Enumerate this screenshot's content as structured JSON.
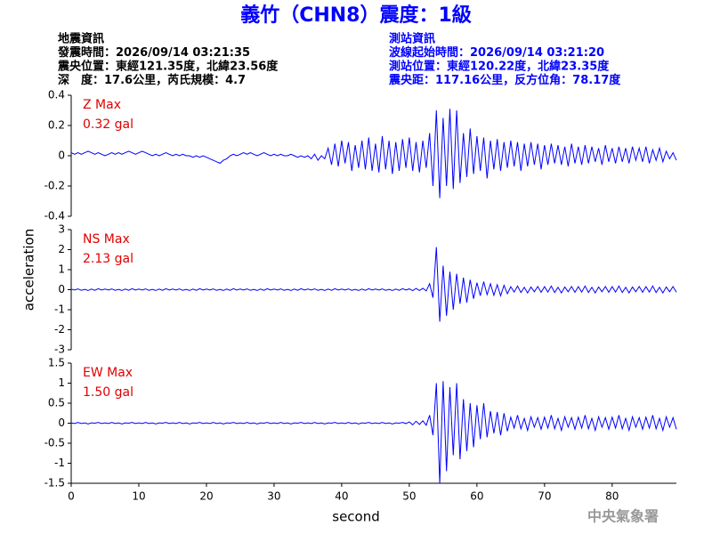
{
  "header": {
    "title": "義竹（CHN8）震度：1級",
    "left": [
      "地震資訊",
      "發震時間：2026/09/14 03:21:35",
      "震央位置：東經121.35度，北緯23.56度",
      "深　度：17.6公里，芮氏規模：4.7"
    ],
    "right": [
      "測站資訊",
      "波線起始時間：2026/09/14 03:21:20",
      "測站位置：東經120.22度，北緯23.35度",
      "震央距：117.16公里，反方位角：78.17度"
    ]
  },
  "footer": "中央氣象署",
  "chart_data": {
    "type": "line",
    "xlabel": "second",
    "ylabel": "acceleration",
    "color": "#0000ff",
    "label_color": "#e00000",
    "xlim": [
      0,
      89.5
    ],
    "xticks": [
      0,
      10,
      20,
      30,
      40,
      50,
      60,
      70,
      80
    ],
    "x": [
      0,
      0.5,
      1,
      1.5,
      2,
      2.5,
      3,
      3.5,
      4,
      4.5,
      5,
      5.5,
      6,
      6.5,
      7,
      7.5,
      8,
      8.5,
      9,
      9.5,
      10,
      10.5,
      11,
      11.5,
      12,
      12.5,
      13,
      13.5,
      14,
      14.5,
      15,
      15.5,
      16,
      16.5,
      17,
      17.5,
      18,
      18.5,
      19,
      19.5,
      20,
      20.5,
      21,
      21.5,
      22,
      22.5,
      23,
      23.5,
      24,
      24.5,
      25,
      25.5,
      26,
      26.5,
      27,
      27.5,
      28,
      28.5,
      29,
      29.5,
      30,
      30.5,
      31,
      31.5,
      32,
      32.5,
      33,
      33.5,
      34,
      34.5,
      35,
      35.5,
      36,
      36.5,
      37,
      37.5,
      38,
      38.5,
      39,
      39.5,
      40,
      40.5,
      41,
      41.5,
      42,
      42.5,
      43,
      43.5,
      44,
      44.5,
      45,
      45.5,
      46,
      46.5,
      47,
      47.5,
      48,
      48.5,
      49,
      49.5,
      50,
      50.5,
      51,
      51.5,
      52,
      52.5,
      53,
      53.5,
      54,
      54.5,
      55,
      55.5,
      56,
      56.5,
      57,
      57.5,
      58,
      58.5,
      59,
      59.5,
      60,
      60.5,
      61,
      61.5,
      62,
      62.5,
      63,
      63.5,
      64,
      64.5,
      65,
      65.5,
      66,
      66.5,
      67,
      67.5,
      68,
      68.5,
      69,
      69.5,
      70,
      70.5,
      71,
      71.5,
      72,
      72.5,
      73,
      73.5,
      74,
      74.5,
      75,
      75.5,
      76,
      76.5,
      77,
      77.5,
      78,
      78.5,
      79,
      79.5,
      80,
      80.5,
      81,
      81.5,
      82,
      82.5,
      83,
      83.5,
      84,
      84.5,
      85,
      85.5,
      86,
      86.5,
      87,
      87.5,
      88,
      88.5,
      89,
      89.5
    ],
    "panels": [
      {
        "label": "Z Max",
        "max_label": "0.32 gal",
        "ylim": [
          -0.4,
          0.4
        ],
        "yticks": [
          0.4,
          0.2,
          0,
          -0.2,
          -0.4
        ],
        "values": [
          0.02,
          0.01,
          0.02,
          0.01,
          0.02,
          0.03,
          0.02,
          0.01,
          0.02,
          0.01,
          0.0,
          0.01,
          0.02,
          0.01,
          0.02,
          0.01,
          0.02,
          0.03,
          0.02,
          0.01,
          0.02,
          0.03,
          0.02,
          0.01,
          0.0,
          0.01,
          0.0,
          0.01,
          0.02,
          0.01,
          0.0,
          0.01,
          0.0,
          0.01,
          0.0,
          0.0,
          -0.01,
          0.0,
          -0.01,
          0.0,
          -0.01,
          -0.02,
          -0.03,
          -0.04,
          -0.05,
          -0.03,
          -0.02,
          0.0,
          0.01,
          0.0,
          0.01,
          0.02,
          0.01,
          0.02,
          0.01,
          0.0,
          0.01,
          0.02,
          0.01,
          0.0,
          0.01,
          0.0,
          0.01,
          0.0,
          0.0,
          0.01,
          0.0,
          -0.01,
          0.0,
          -0.01,
          0.0,
          -0.02,
          0.01,
          -0.03,
          0.0,
          -0.02,
          0.05,
          -0.06,
          0.08,
          -0.07,
          0.1,
          -0.05,
          0.09,
          -0.1,
          0.07,
          -0.08,
          0.1,
          -0.09,
          0.12,
          -0.1,
          0.08,
          -0.11,
          0.13,
          -0.09,
          0.1,
          -0.12,
          0.09,
          -0.1,
          0.11,
          -0.08,
          0.12,
          -0.1,
          0.09,
          -0.11,
          0.1,
          -0.08,
          0.15,
          -0.2,
          0.3,
          -0.28,
          0.25,
          -0.2,
          0.31,
          -0.22,
          0.3,
          -0.18,
          0.15,
          -0.14,
          0.18,
          -0.12,
          0.13,
          -0.1,
          0.12,
          -0.15,
          0.1,
          -0.09,
          0.11,
          -0.1,
          0.09,
          -0.08,
          0.1,
          -0.07,
          0.09,
          -0.1,
          0.08,
          -0.07,
          0.09,
          -0.06,
          0.08,
          -0.09,
          0.07,
          -0.06,
          0.08,
          -0.05,
          0.07,
          -0.06,
          0.06,
          -0.07,
          0.08,
          -0.05,
          0.06,
          -0.06,
          0.07,
          -0.05,
          0.06,
          -0.04,
          0.05,
          -0.06,
          0.07,
          -0.04,
          0.05,
          -0.05,
          0.06,
          -0.04,
          0.05,
          -0.05,
          0.06,
          -0.03,
          0.05,
          -0.04,
          0.06,
          -0.05,
          0.04,
          -0.03,
          0.05,
          -0.04,
          0.03,
          -0.02,
          0.02,
          -0.03
        ]
      },
      {
        "label": "NS Max",
        "max_label": "2.13 gal",
        "ylim": [
          -3,
          3
        ],
        "yticks": [
          3,
          2,
          1,
          0,
          -1,
          -2,
          -3
        ],
        "values": [
          0.03,
          -0.02,
          0.04,
          -0.03,
          0.02,
          -0.04,
          0.03,
          -0.03,
          0.05,
          -0.02,
          0.03,
          -0.02,
          0.04,
          -0.03,
          0.02,
          -0.04,
          0.03,
          -0.03,
          0.05,
          -0.02,
          0.03,
          -0.02,
          0.04,
          -0.03,
          0.02,
          -0.04,
          0.03,
          -0.03,
          0.05,
          -0.02,
          0.03,
          -0.02,
          0.04,
          -0.03,
          0.02,
          -0.04,
          0.03,
          -0.03,
          0.05,
          -0.02,
          0.03,
          -0.02,
          0.04,
          -0.03,
          0.02,
          -0.04,
          0.03,
          -0.03,
          0.05,
          -0.02,
          0.03,
          -0.02,
          0.04,
          -0.03,
          0.02,
          -0.04,
          0.03,
          -0.03,
          0.05,
          -0.02,
          0.03,
          -0.02,
          0.04,
          -0.03,
          0.02,
          -0.04,
          0.03,
          -0.03,
          0.05,
          -0.02,
          0.03,
          -0.02,
          0.04,
          -0.03,
          0.02,
          -0.04,
          0.03,
          -0.03,
          0.05,
          -0.02,
          0.03,
          -0.02,
          0.04,
          -0.03,
          0.02,
          -0.04,
          0.03,
          -0.03,
          0.05,
          -0.02,
          0.03,
          -0.02,
          0.04,
          -0.03,
          0.02,
          -0.04,
          0.03,
          -0.03,
          0.05,
          -0.02,
          0.04,
          -0.05,
          0.06,
          -0.04,
          0.07,
          -0.06,
          0.3,
          -0.4,
          2.13,
          -1.6,
          1.2,
          -1.3,
          0.9,
          -1.0,
          0.8,
          -0.7,
          0.6,
          -0.65,
          0.5,
          -0.45,
          0.35,
          -0.3,
          0.4,
          -0.25,
          0.3,
          -0.28,
          0.25,
          -0.3,
          0.22,
          -0.2,
          0.15,
          -0.12,
          0.18,
          -0.14,
          0.12,
          -0.16,
          0.14,
          -0.1,
          0.16,
          -0.13,
          0.15,
          -0.12,
          0.18,
          -0.14,
          0.12,
          -0.16,
          0.14,
          -0.1,
          0.16,
          -0.13,
          0.15,
          -0.12,
          0.18,
          -0.14,
          0.12,
          -0.16,
          0.14,
          -0.1,
          0.16,
          -0.13,
          0.15,
          -0.12,
          0.18,
          -0.14,
          0.12,
          -0.16,
          0.14,
          -0.1,
          0.16,
          -0.13,
          0.15,
          -0.12,
          0.18,
          -0.14,
          0.12,
          -0.16,
          0.14,
          -0.1,
          0.16,
          -0.13
        ]
      },
      {
        "label": "EW Max",
        "max_label": "1.50 gal",
        "ylim": [
          -1.5,
          1.5
        ],
        "yticks": [
          1.5,
          1,
          0.5,
          0,
          -0.5,
          -1,
          -1.5
        ],
        "values": [
          0.01,
          -0.01,
          0.02,
          -0.01,
          0.01,
          -0.02,
          0.01,
          0.0,
          0.02,
          -0.01,
          0.01,
          -0.01,
          0.02,
          -0.01,
          0.01,
          -0.02,
          0.01,
          0.0,
          0.02,
          -0.01,
          0.01,
          -0.01,
          0.02,
          -0.01,
          0.01,
          -0.02,
          0.01,
          0.0,
          0.02,
          -0.01,
          0.01,
          -0.01,
          0.02,
          -0.01,
          0.01,
          -0.02,
          0.01,
          0.0,
          0.02,
          -0.01,
          0.01,
          -0.01,
          0.02,
          -0.01,
          0.01,
          -0.02,
          0.01,
          0.0,
          0.02,
          -0.01,
          0.01,
          -0.01,
          0.02,
          -0.01,
          0.01,
          -0.02,
          0.01,
          0.0,
          0.02,
          -0.01,
          0.01,
          -0.01,
          0.02,
          -0.01,
          0.01,
          -0.02,
          0.01,
          0.0,
          0.02,
          -0.01,
          0.01,
          -0.01,
          0.02,
          -0.01,
          0.01,
          -0.02,
          0.01,
          0.0,
          0.02,
          -0.01,
          0.01,
          -0.01,
          0.02,
          -0.01,
          0.01,
          -0.02,
          0.01,
          0.0,
          0.02,
          -0.01,
          0.01,
          -0.01,
          0.02,
          -0.01,
          0.01,
          -0.02,
          0.01,
          0.0,
          0.02,
          -0.01,
          0.03,
          -0.04,
          0.05,
          -0.03,
          0.06,
          -0.05,
          0.2,
          -0.3,
          1.0,
          -1.5,
          1.05,
          -1.2,
          0.9,
          -0.8,
          1.0,
          -0.9,
          0.6,
          -0.7,
          0.5,
          -0.6,
          0.45,
          -0.4,
          0.5,
          -0.35,
          0.3,
          -0.25,
          0.28,
          -0.3,
          0.25,
          -0.2,
          0.15,
          -0.12,
          0.2,
          -0.14,
          0.12,
          -0.18,
          0.16,
          -0.1,
          0.14,
          -0.15,
          0.15,
          -0.12,
          0.2,
          -0.14,
          0.12,
          -0.18,
          0.16,
          -0.1,
          0.14,
          -0.15,
          0.15,
          -0.12,
          0.2,
          -0.14,
          0.12,
          -0.18,
          0.16,
          -0.1,
          0.14,
          -0.15,
          0.15,
          -0.12,
          0.2,
          -0.14,
          0.12,
          -0.18,
          0.16,
          -0.1,
          0.14,
          -0.15,
          0.15,
          -0.12,
          0.2,
          -0.14,
          0.12,
          -0.18,
          0.16,
          -0.1,
          0.14,
          -0.15
        ]
      }
    ]
  }
}
